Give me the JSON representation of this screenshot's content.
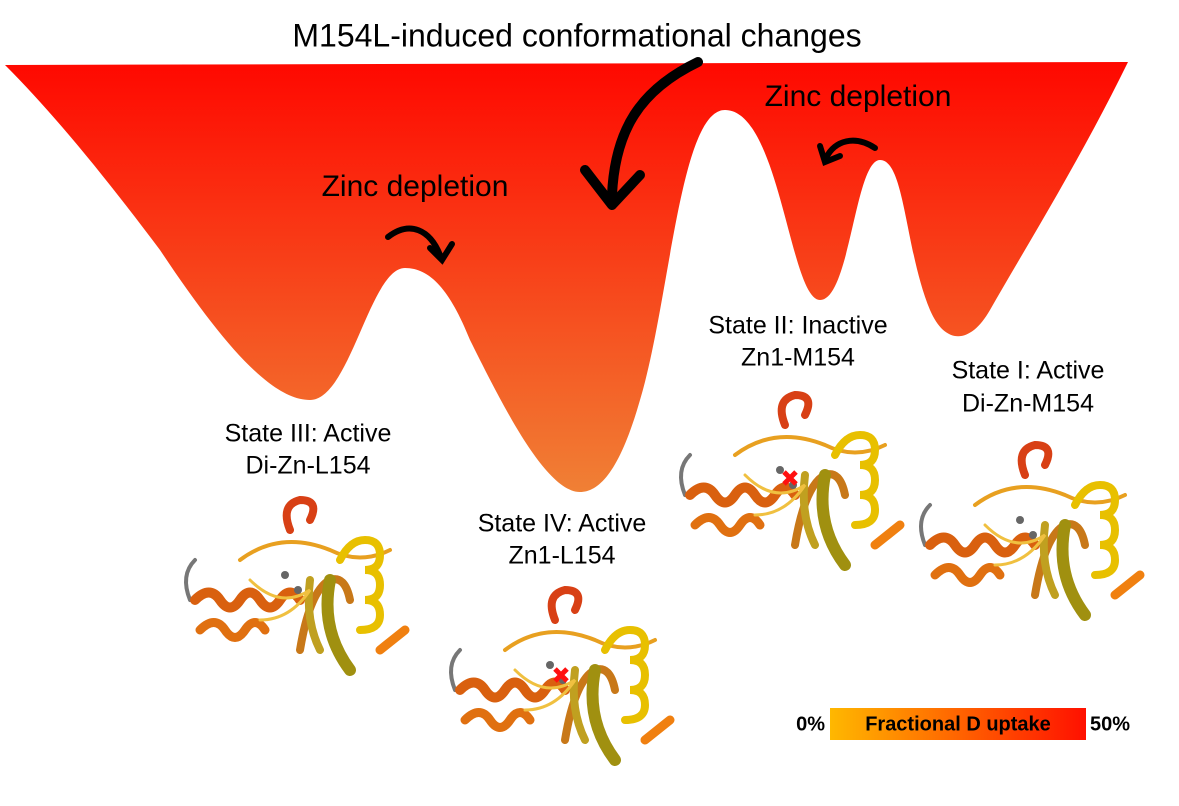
{
  "title": "M154L-induced conformational changes",
  "annotations": [
    "Zinc depletion",
    "Zinc depletion"
  ],
  "states": [
    {
      "lines": [
        "State III: Active",
        "Di-Zn-L154"
      ]
    },
    {
      "lines": [
        "State IV: Active",
        "Zn1-L154"
      ]
    },
    {
      "lines": [
        "State II: Inactive",
        "Zn1-M154"
      ]
    },
    {
      "lines": [
        "State I: Active",
        "Di-Zn-M154"
      ]
    }
  ],
  "legend": {
    "min": "0%",
    "label": "Fractional D uptake",
    "max": "50%"
  }
}
